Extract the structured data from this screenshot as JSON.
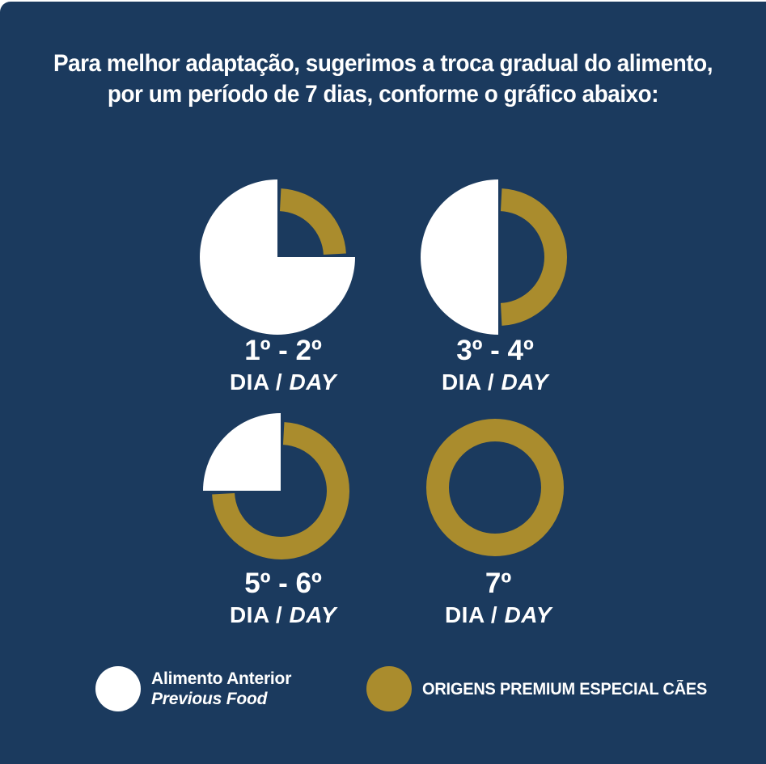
{
  "colors": {
    "background": "#1b3a5e",
    "previous_food": "#ffffff",
    "new_food": "#aa8c2d",
    "text": "#ffffff"
  },
  "heading": {
    "line1": "Para melhor adaptação, sugerimos a troca gradual do alimento,",
    "line2": "por um período de 7 dias, conforme o gráfico abaixo:"
  },
  "chart_data": {
    "type": "pie",
    "variant": "donut-transition",
    "title": "Para melhor adaptação, sugerimos a troca gradual do alimento, por um período de 7 dias, conforme o gráfico abaixo:",
    "charts": [
      {
        "range": "1º - 2º",
        "dia_label": "DIA",
        "slash": "/",
        "day_label": "DAY",
        "previous_food_pct": 75,
        "new_food_pct": 25,
        "white_arc": {
          "start": 90,
          "end": 360
        },
        "gold_arc": {
          "start": 0,
          "end": 90
        }
      },
      {
        "range": "3º - 4º",
        "dia_label": "DIA",
        "slash": "/",
        "day_label": "DAY",
        "previous_food_pct": 50,
        "new_food_pct": 50,
        "white_arc": {
          "start": 180,
          "end": 360
        },
        "gold_arc": {
          "start": 0,
          "end": 180
        }
      },
      {
        "range": "5º - 6º",
        "dia_label": "DIA",
        "slash": "/",
        "day_label": "DAY",
        "previous_food_pct": 25,
        "new_food_pct": 75,
        "white_arc": {
          "start": 270,
          "end": 360
        },
        "gold_arc": {
          "start": 0,
          "end": 270
        }
      },
      {
        "range": "7º",
        "dia_label": "DIA",
        "slash": "/",
        "day_label": "DAY",
        "previous_food_pct": 0,
        "new_food_pct": 100,
        "white_arc": null,
        "gold_arc": {
          "start": 0,
          "end": 360
        }
      }
    ],
    "legend": [
      {
        "swatch_color": "#ffffff",
        "line1": "Alimento Anterior",
        "line2": "Previous Food"
      },
      {
        "swatch_color": "#aa8c2d",
        "label": "ORIGENS PREMIUM ESPECIAL CÃES"
      }
    ]
  }
}
